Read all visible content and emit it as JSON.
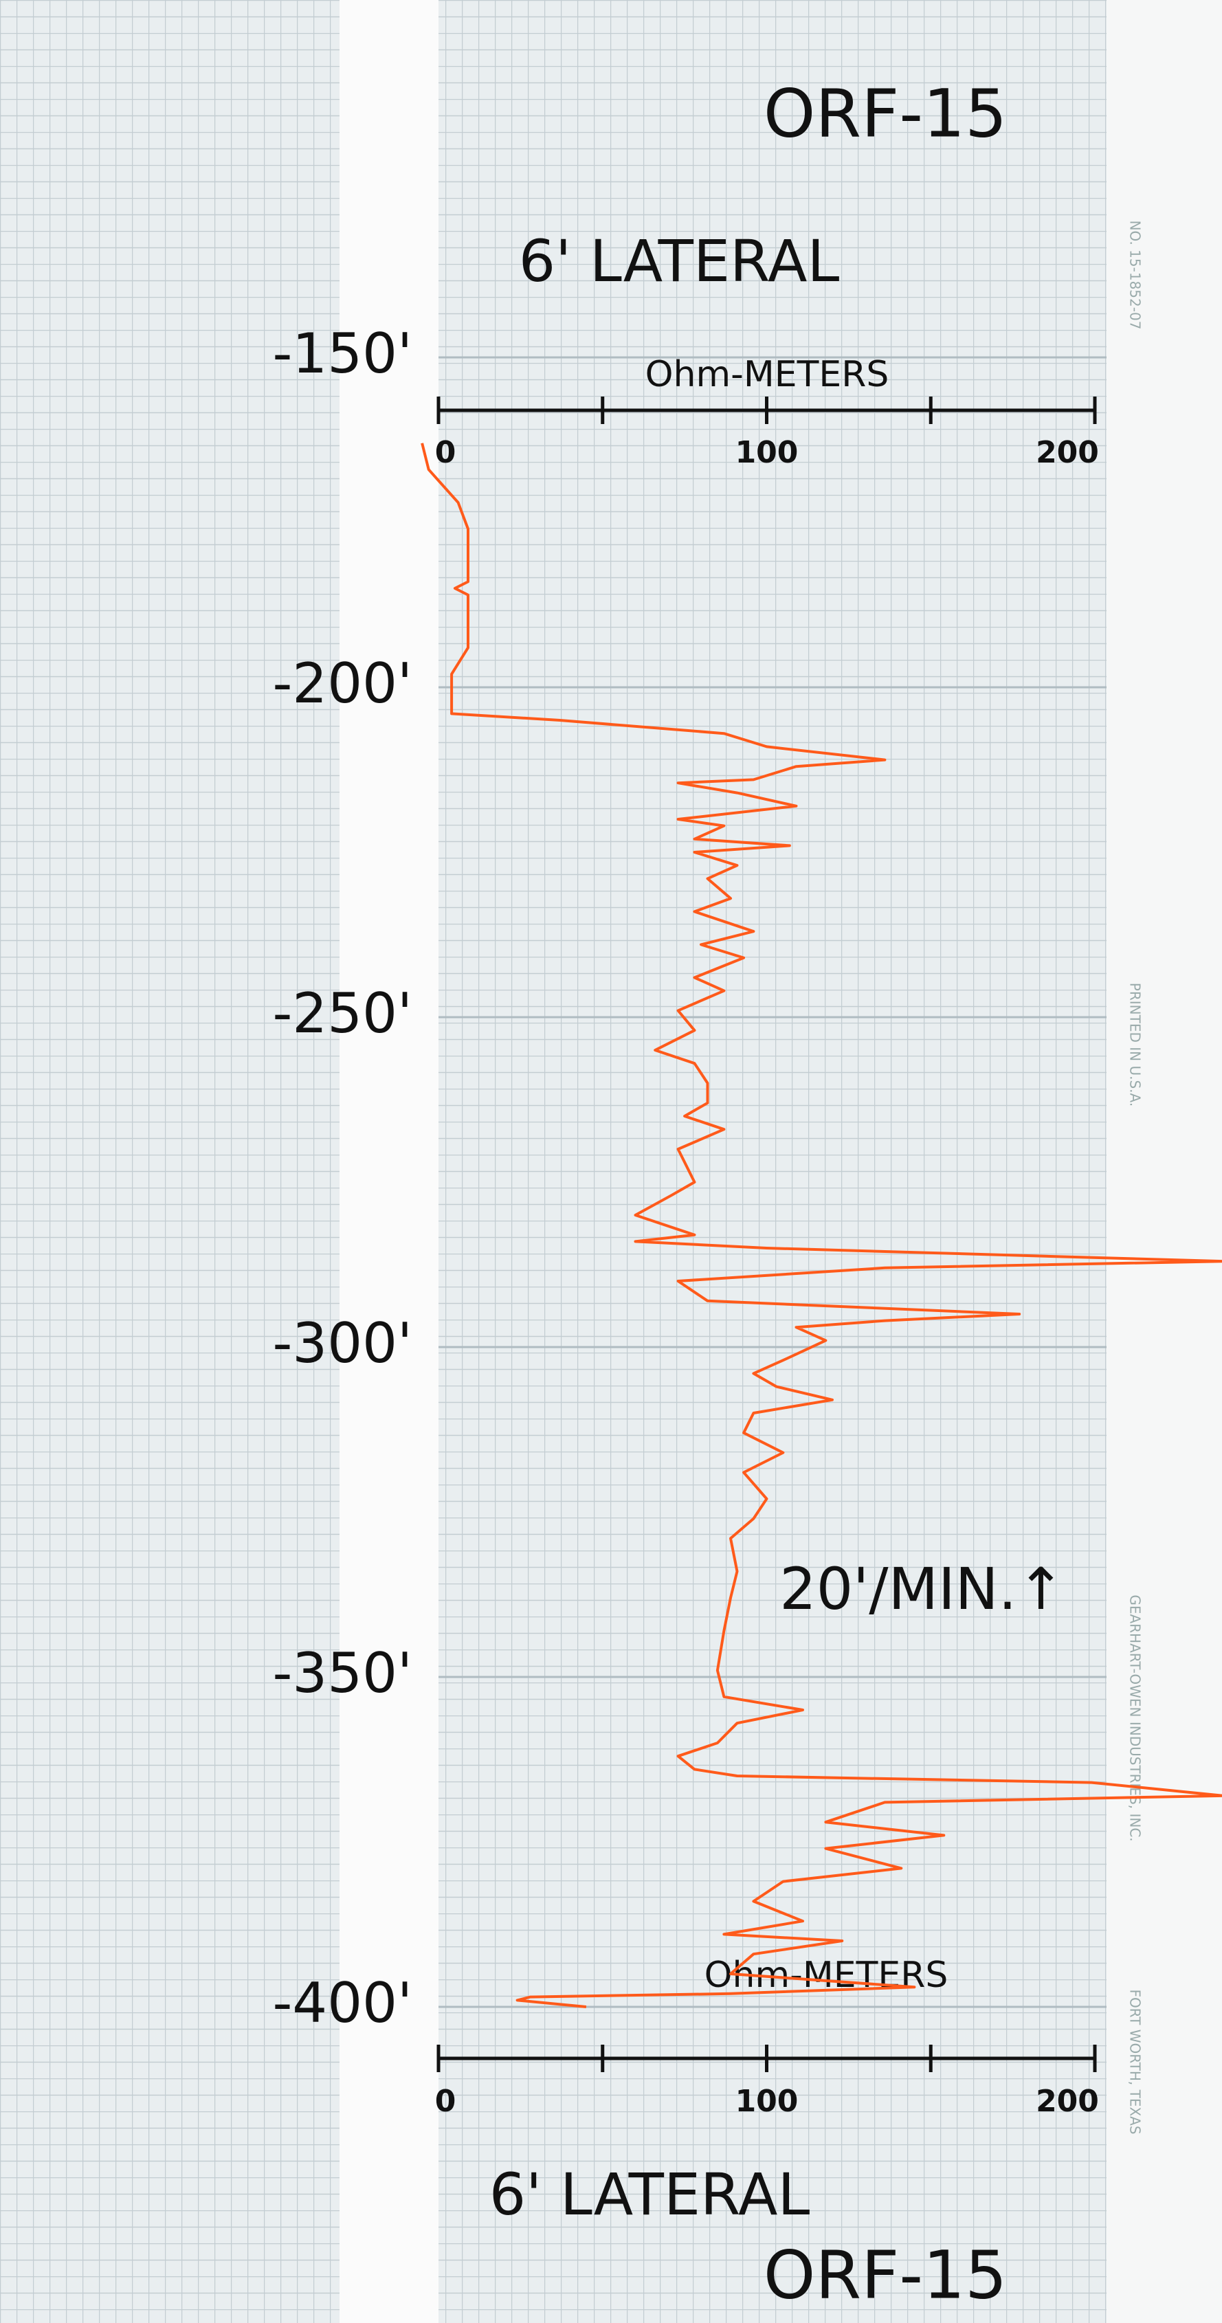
{
  "chart_data": {
    "type": "line",
    "title": "ORF-15",
    "subtitle": "6' LATERAL",
    "xlabel": "Ohm-METERS",
    "annotation": "20'/MIN.↑",
    "paper_margin_text": [
      "GEARHART-OWEN INDUSTRIES, INC.",
      "FORT WORTH, TEXAS",
      "NO. 15-1852-07",
      "PRINTED IN U.S.A."
    ],
    "xlim": [
      0,
      200
    ],
    "xticks": [
      0,
      {
        "value": 50,
        "label": null
      },
      100,
      {
        "value": 150,
        "label": null
      },
      200
    ],
    "ylim": [
      -150,
      -400
    ],
    "yticks": [
      {
        "value": -150,
        "label": "-150'"
      },
      {
        "value": -200,
        "label": "-200'"
      },
      {
        "value": -250,
        "label": "-250'"
      },
      {
        "value": -300,
        "label": "-300'"
      },
      {
        "value": -350,
        "label": "-350'"
      },
      {
        "value": -400,
        "label": "-400'"
      }
    ],
    "grid": true,
    "series": [
      {
        "name": null,
        "color": "#ff5a1a",
        "x": [
          -163,
          -167,
          -172,
          -176,
          -184,
          -185,
          -186,
          -194,
          -198,
          -204,
          -205,
          -207,
          -209,
          -211,
          -212,
          -214,
          -214.5,
          -216,
          -218,
          -220,
          -221,
          -223,
          -224,
          -225,
          -227,
          -229,
          -232,
          -234,
          -237,
          -239,
          -241,
          -244,
          -246,
          -249,
          -252,
          -255,
          -257,
          -260,
          -263,
          -265,
          -267,
          -270,
          -275,
          -277,
          -280,
          -283,
          -284,
          -285,
          -287,
          -288,
          -290,
          -293,
          -295,
          -296,
          -297,
          -299,
          -302,
          -304,
          -306,
          -308,
          -310,
          -313,
          -316,
          -319,
          -323,
          -326,
          -329,
          -334,
          -338,
          -343,
          -349,
          -353,
          -355,
          -357,
          -360,
          -362,
          -364,
          -365,
          -366,
          -368,
          -369,
          -372,
          -374,
          -376,
          -379,
          -381,
          -384,
          -387,
          -389,
          -390,
          -392,
          -395,
          -397,
          -398,
          -398.5,
          -399,
          -400
        ],
        "values": [
          -5,
          -3,
          6,
          9,
          9,
          5,
          9,
          9,
          4,
          4,
          37,
          87,
          100,
          136,
          109,
          96,
          73,
          91,
          109,
          73,
          87,
          78,
          107,
          78,
          91,
          82,
          89,
          78,
          96,
          80,
          93,
          78,
          87,
          73,
          78,
          66,
          78,
          82,
          82,
          75,
          87,
          73,
          78,
          71,
          60,
          78,
          60,
          100,
          239,
          136,
          73,
          82,
          177,
          136,
          109,
          118,
          105,
          96,
          103,
          120,
          96,
          93,
          105,
          93,
          100,
          96,
          89,
          91,
          89,
          87,
          85,
          87,
          111,
          91,
          85,
          73,
          78,
          91,
          199,
          239,
          136,
          118,
          154,
          118,
          141,
          105,
          96,
          111,
          87,
          123,
          96,
          89,
          145,
          89,
          28,
          24,
          45
        ]
      }
    ]
  }
}
